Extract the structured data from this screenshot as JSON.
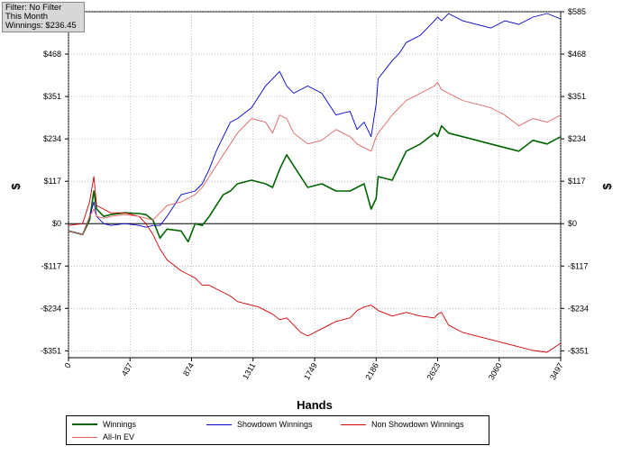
{
  "filter_box": {
    "line1": "Filter: No Filter",
    "line2": "This Month",
    "line3": "Winnings: $236.45"
  },
  "chart_data": {
    "type": "line",
    "xlabel": "Hands",
    "ylabel_left": "$",
    "ylabel_right": "$",
    "xlim": [
      0,
      3497
    ],
    "ylim": [
      -370,
      585
    ],
    "x_ticks": [
      0,
      437,
      874,
      1311,
      1749,
      2186,
      2623,
      3060,
      3497
    ],
    "y_ticks": [
      -351,
      -234,
      -117,
      0,
      117,
      234,
      351,
      468,
      585
    ],
    "y_tick_labels": [
      "-$351",
      "-$234",
      "-$117",
      "$0",
      "$117",
      "$234",
      "$351",
      "$468",
      "$585"
    ],
    "grid": true,
    "legend_position": "bottom",
    "series": [
      {
        "name": "Winnings",
        "color": "#006400",
        "x": [
          0,
          100,
          150,
          180,
          200,
          250,
          300,
          400,
          500,
          550,
          600,
          650,
          700,
          800,
          850,
          900,
          950,
          1000,
          1050,
          1100,
          1150,
          1200,
          1300,
          1400,
          1450,
          1500,
          1550,
          1600,
          1700,
          1800,
          1900,
          2000,
          2050,
          2100,
          2150,
          2186,
          2200,
          2300,
          2350,
          2400,
          2500,
          2600,
          2623,
          2650,
          2700,
          2800,
          2900,
          3000,
          3100,
          3200,
          3300,
          3400,
          3497
        ],
        "y": [
          -20,
          -30,
          10,
          90,
          40,
          20,
          25,
          30,
          28,
          25,
          10,
          -40,
          -15,
          -20,
          -50,
          0,
          -5,
          20,
          50,
          80,
          90,
          110,
          120,
          110,
          100,
          150,
          190,
          160,
          100,
          110,
          90,
          90,
          100,
          110,
          40,
          70,
          130,
          120,
          160,
          200,
          220,
          250,
          240,
          270,
          250,
          240,
          230,
          220,
          210,
          200,
          230,
          220,
          240
        ]
      },
      {
        "name": "Showdown Winnings",
        "color": "#0000c8",
        "x": [
          0,
          100,
          150,
          180,
          200,
          250,
          300,
          400,
          500,
          550,
          600,
          650,
          700,
          800,
          900,
          950,
          1000,
          1050,
          1100,
          1150,
          1200,
          1300,
          1400,
          1450,
          1500,
          1550,
          1600,
          1700,
          1800,
          1900,
          2000,
          2050,
          2100,
          2150,
          2186,
          2200,
          2300,
          2350,
          2400,
          2500,
          2600,
          2623,
          2650,
          2700,
          2800,
          2900,
          3000,
          3100,
          3200,
          3300,
          3400,
          3497
        ],
        "y": [
          -20,
          -30,
          20,
          60,
          20,
          0,
          -5,
          0,
          -5,
          -10,
          -5,
          -5,
          20,
          80,
          90,
          110,
          150,
          200,
          240,
          280,
          290,
          320,
          380,
          400,
          420,
          380,
          360,
          380,
          360,
          300,
          310,
          260,
          280,
          240,
          330,
          400,
          450,
          470,
          500,
          520,
          560,
          570,
          560,
          580,
          560,
          550,
          540,
          560,
          550,
          570,
          580,
          565
        ]
      },
      {
        "name": "Non Showdown Winnings",
        "color": "#d00000",
        "x": [
          0,
          100,
          150,
          180,
          200,
          250,
          300,
          400,
          500,
          550,
          600,
          650,
          700,
          800,
          900,
          950,
          1000,
          1050,
          1100,
          1150,
          1200,
          1300,
          1350,
          1400,
          1450,
          1500,
          1550,
          1600,
          1650,
          1700,
          1800,
          1900,
          2000,
          2050,
          2100,
          2150,
          2186,
          2200,
          2300,
          2350,
          2400,
          2500,
          2600,
          2623,
          2650,
          2700,
          2800,
          2900,
          3000,
          3100,
          3200,
          3300,
          3400,
          3497
        ],
        "y": [
          -5,
          0,
          60,
          130,
          50,
          40,
          30,
          30,
          20,
          0,
          -30,
          -70,
          -100,
          -130,
          -150,
          -170,
          -170,
          -180,
          -190,
          -200,
          -215,
          -225,
          -230,
          -240,
          -250,
          -265,
          -260,
          -280,
          -300,
          -310,
          -290,
          -270,
          -260,
          -240,
          -230,
          -225,
          -235,
          -240,
          -255,
          -250,
          -245,
          -255,
          -260,
          -250,
          -245,
          -280,
          -300,
          -310,
          -320,
          -330,
          -340,
          -350,
          -355,
          -330
        ]
      },
      {
        "name": "All-In EV",
        "color": "#e06060",
        "x": [
          0,
          100,
          150,
          180,
          200,
          250,
          300,
          400,
          500,
          550,
          600,
          650,
          700,
          800,
          850,
          900,
          950,
          1000,
          1050,
          1100,
          1150,
          1200,
          1300,
          1400,
          1450,
          1500,
          1550,
          1600,
          1700,
          1800,
          1900,
          2000,
          2050,
          2100,
          2150,
          2186,
          2200,
          2300,
          2350,
          2400,
          2500,
          2600,
          2623,
          2650,
          2700,
          2800,
          2900,
          3000,
          3100,
          3200,
          3300,
          3400,
          3497
        ],
        "y": [
          -20,
          -30,
          20,
          40,
          20,
          15,
          20,
          25,
          20,
          15,
          10,
          30,
          50,
          60,
          70,
          80,
          100,
          130,
          160,
          190,
          220,
          250,
          290,
          280,
          250,
          300,
          290,
          250,
          220,
          230,
          260,
          240,
          220,
          210,
          200,
          240,
          250,
          300,
          320,
          340,
          360,
          380,
          390,
          370,
          360,
          340,
          330,
          320,
          300,
          270,
          290,
          280,
          300
        ]
      }
    ]
  }
}
